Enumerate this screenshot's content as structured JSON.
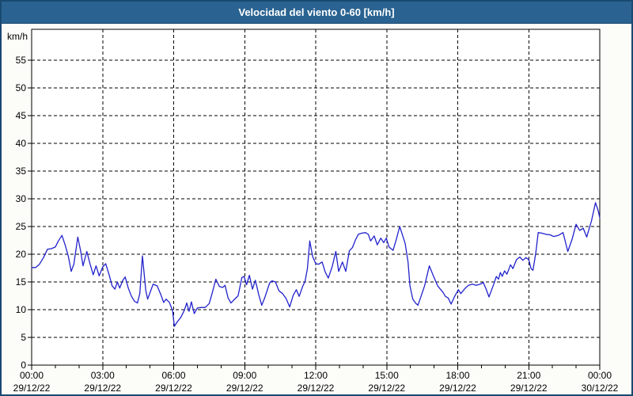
{
  "window": {
    "title": "Velocidad del viento 0-60 [km/h]"
  },
  "colors": {
    "titlebar_bg": "#2a6391",
    "window_border": "#1a4971",
    "page_bg": "#fcfcf8",
    "plot_bg": "#ffffff",
    "grid": "#000000",
    "axis": "#000000",
    "line": "#2222cc",
    "title_text": "#ffffff",
    "label_text": "#000000"
  },
  "chart_data": {
    "type": "line",
    "title": "Velocidad del viento 0-60 [km/h]",
    "xlabel": "",
    "ylabel": "km/h",
    "ylim": [
      0,
      60
    ],
    "xlim_hours": [
      0,
      24
    ],
    "grid": "dashed",
    "legend_position": "none",
    "y_ticks": [
      0,
      5,
      10,
      15,
      20,
      25,
      30,
      35,
      40,
      45,
      50,
      55
    ],
    "x_ticks": [
      {
        "hour": 0,
        "time": "00:00",
        "date": "29/12/22"
      },
      {
        "hour": 3,
        "time": "03:00",
        "date": "29/12/22"
      },
      {
        "hour": 6,
        "time": "06:00",
        "date": "29/12/22"
      },
      {
        "hour": 9,
        "time": "09:00",
        "date": "29/12/22"
      },
      {
        "hour": 12,
        "time": "12:00",
        "date": "29/12/22"
      },
      {
        "hour": 15,
        "time": "15:00",
        "date": "29/12/22"
      },
      {
        "hour": 18,
        "time": "18:00",
        "date": "29/12/22"
      },
      {
        "hour": 21,
        "time": "21:00",
        "date": "29/12/22"
      },
      {
        "hour": 24,
        "time": "00:00",
        "date": "30/12/22"
      }
    ],
    "minor_x_tick_every_hours": 1,
    "series": [
      {
        "name": "Velocidad del viento",
        "units": "km/h",
        "points": [
          [
            0,
            17.6
          ],
          [
            0.17,
            17.6
          ],
          [
            0.33,
            18.2
          ],
          [
            0.5,
            19.4
          ],
          [
            0.67,
            20.9
          ],
          [
            0.83,
            21.0
          ],
          [
            1.0,
            21.3
          ],
          [
            1.13,
            22.4
          ],
          [
            1.28,
            23.4
          ],
          [
            1.42,
            21.6
          ],
          [
            1.55,
            19.6
          ],
          [
            1.67,
            16.9
          ],
          [
            1.78,
            18.2
          ],
          [
            1.88,
            21.0
          ],
          [
            1.95,
            23.1
          ],
          [
            2.07,
            20.6
          ],
          [
            2.17,
            17.9
          ],
          [
            2.33,
            20.5
          ],
          [
            2.47,
            18.2
          ],
          [
            2.6,
            16.3
          ],
          [
            2.72,
            17.9
          ],
          [
            2.85,
            16.1
          ],
          [
            3.0,
            17.7
          ],
          [
            3.13,
            18.3
          ],
          [
            3.28,
            16.2
          ],
          [
            3.4,
            14.3
          ],
          [
            3.52,
            13.7
          ],
          [
            3.62,
            15.0
          ],
          [
            3.72,
            13.9
          ],
          [
            3.85,
            15.3
          ],
          [
            3.95,
            15.9
          ],
          [
            4.08,
            13.9
          ],
          [
            4.22,
            12.4
          ],
          [
            4.35,
            11.5
          ],
          [
            4.47,
            11.2
          ],
          [
            4.57,
            12.9
          ],
          [
            4.68,
            19.7
          ],
          [
            4.82,
            13.5
          ],
          [
            4.9,
            11.9
          ],
          [
            5.02,
            13.3
          ],
          [
            5.13,
            14.6
          ],
          [
            5.3,
            14.3
          ],
          [
            5.45,
            12.8
          ],
          [
            5.58,
            11.3
          ],
          [
            5.68,
            11.9
          ],
          [
            5.82,
            11.3
          ],
          [
            5.95,
            9.9
          ],
          [
            6.03,
            7.0
          ],
          [
            6.15,
            7.8
          ],
          [
            6.3,
            8.6
          ],
          [
            6.45,
            9.9
          ],
          [
            6.55,
            11.2
          ],
          [
            6.65,
            9.7
          ],
          [
            6.75,
            11.4
          ],
          [
            6.87,
            9.3
          ],
          [
            7.0,
            10.3
          ],
          [
            7.17,
            10.4
          ],
          [
            7.33,
            10.4
          ],
          [
            7.5,
            11.1
          ],
          [
            7.62,
            12.9
          ],
          [
            7.78,
            15.5
          ],
          [
            7.93,
            14.2
          ],
          [
            8.07,
            14.0
          ],
          [
            8.17,
            14.4
          ],
          [
            8.3,
            12.1
          ],
          [
            8.42,
            11.2
          ],
          [
            8.55,
            11.8
          ],
          [
            8.72,
            12.5
          ],
          [
            8.88,
            15.8
          ],
          [
            8.97,
            16.0
          ],
          [
            9.08,
            14.5
          ],
          [
            9.2,
            16.2
          ],
          [
            9.33,
            13.7
          ],
          [
            9.45,
            15.3
          ],
          [
            9.6,
            12.6
          ],
          [
            9.72,
            10.8
          ],
          [
            9.85,
            12.2
          ],
          [
            9.95,
            13.5
          ],
          [
            10.05,
            14.8
          ],
          [
            10.15,
            15.2
          ],
          [
            10.3,
            15.0
          ],
          [
            10.45,
            13.4
          ],
          [
            10.6,
            12.9
          ],
          [
            10.75,
            12.0
          ],
          [
            10.9,
            10.5
          ],
          [
            11.05,
            12.6
          ],
          [
            11.18,
            13.6
          ],
          [
            11.3,
            12.4
          ],
          [
            11.45,
            14.2
          ],
          [
            11.55,
            15.1
          ],
          [
            11.65,
            17.4
          ],
          [
            11.75,
            22.4
          ],
          [
            11.87,
            19.6
          ],
          [
            12.0,
            18.3
          ],
          [
            12.13,
            18.2
          ],
          [
            12.27,
            18.6
          ],
          [
            12.4,
            16.8
          ],
          [
            12.53,
            15.7
          ],
          [
            12.7,
            17.8
          ],
          [
            12.85,
            20.5
          ],
          [
            12.97,
            16.9
          ],
          [
            13.13,
            18.6
          ],
          [
            13.27,
            16.9
          ],
          [
            13.42,
            20.6
          ],
          [
            13.55,
            21.2
          ],
          [
            13.68,
            22.6
          ],
          [
            13.8,
            23.6
          ],
          [
            13.95,
            23.8
          ],
          [
            14.1,
            23.9
          ],
          [
            14.22,
            23.6
          ],
          [
            14.32,
            22.4
          ],
          [
            14.47,
            23.3
          ],
          [
            14.6,
            21.7
          ],
          [
            14.75,
            22.9
          ],
          [
            14.87,
            22.1
          ],
          [
            14.98,
            22.9
          ],
          [
            15.1,
            21.3
          ],
          [
            15.27,
            20.7
          ],
          [
            15.4,
            22.6
          ],
          [
            15.55,
            25.0
          ],
          [
            15.67,
            23.4
          ],
          [
            15.78,
            21.9
          ],
          [
            15.9,
            18.6
          ],
          [
            15.98,
            14.3
          ],
          [
            16.1,
            11.9
          ],
          [
            16.22,
            11.2
          ],
          [
            16.32,
            10.8
          ],
          [
            16.45,
            12.4
          ],
          [
            16.6,
            14.3
          ],
          [
            16.8,
            17.9
          ],
          [
            16.97,
            16.1
          ],
          [
            17.15,
            14.3
          ],
          [
            17.38,
            13.1
          ],
          [
            17.48,
            12.4
          ],
          [
            17.6,
            12.1
          ],
          [
            17.72,
            11.0
          ],
          [
            17.87,
            12.4
          ],
          [
            18.03,
            13.6
          ],
          [
            18.13,
            12.9
          ],
          [
            18.3,
            13.8
          ],
          [
            18.45,
            14.4
          ],
          [
            18.62,
            14.6
          ],
          [
            18.78,
            14.4
          ],
          [
            18.95,
            14.6
          ],
          [
            19.08,
            14.9
          ],
          [
            19.2,
            13.7
          ],
          [
            19.32,
            12.3
          ],
          [
            19.52,
            14.6
          ],
          [
            19.63,
            16.0
          ],
          [
            19.72,
            15.5
          ],
          [
            19.8,
            16.7
          ],
          [
            19.88,
            16.0
          ],
          [
            19.98,
            17.0
          ],
          [
            20.08,
            16.4
          ],
          [
            20.23,
            18.1
          ],
          [
            20.33,
            17.4
          ],
          [
            20.48,
            19.0
          ],
          [
            20.62,
            19.5
          ],
          [
            20.75,
            18.9
          ],
          [
            20.88,
            19.4
          ],
          [
            21.0,
            19.0
          ],
          [
            21.1,
            17.4
          ],
          [
            21.18,
            17.1
          ],
          [
            21.3,
            20.3
          ],
          [
            21.4,
            23.9
          ],
          [
            21.55,
            23.8
          ],
          [
            21.72,
            23.6
          ],
          [
            21.9,
            23.5
          ],
          [
            22.05,
            23.2
          ],
          [
            22.25,
            23.4
          ],
          [
            22.45,
            23.9
          ],
          [
            22.65,
            20.5
          ],
          [
            22.83,
            22.7
          ],
          [
            23.0,
            25.4
          ],
          [
            23.15,
            24.3
          ],
          [
            23.3,
            24.7
          ],
          [
            23.45,
            23.1
          ],
          [
            23.65,
            26.0
          ],
          [
            23.82,
            29.3
          ],
          [
            23.93,
            27.9
          ],
          [
            24.0,
            26.6
          ]
        ]
      }
    ]
  }
}
